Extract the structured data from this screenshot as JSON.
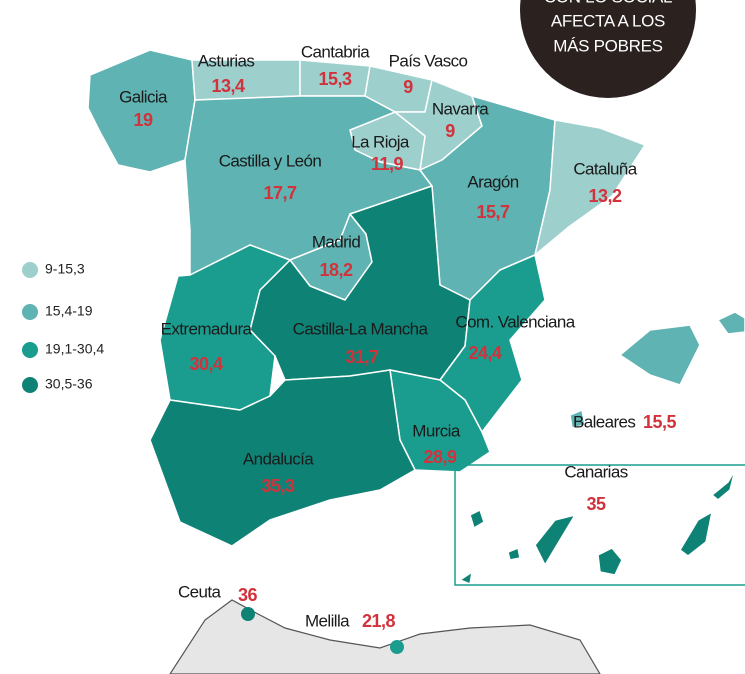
{
  "badge": {
    "lines": [
      "CON LO SOCIAL",
      "AFECTA A LOS",
      "MÁS POBRES"
    ]
  },
  "legend": [
    {
      "label": "9-15,3",
      "color": "#9dcfcc"
    },
    {
      "label": "15,4-19",
      "color": "#5fb3b2"
    },
    {
      "label": "19,1-30,4",
      "color": "#1a9d8f"
    },
    {
      "label": "30,5-36",
      "color": "#0f8276"
    }
  ],
  "regions": [
    {
      "name": "Galicia",
      "value": "19",
      "color": "#5fb3b2"
    },
    {
      "name": "Asturias",
      "value": "13,4",
      "color": "#9dcfcc"
    },
    {
      "name": "Cantabria",
      "value": "15,3",
      "color": "#9dcfcc"
    },
    {
      "name": "País Vasco",
      "value": "9",
      "color": "#9dcfcc"
    },
    {
      "name": "Navarra",
      "value": "9",
      "color": "#9dcfcc"
    },
    {
      "name": "La Rioja",
      "value": "11,9",
      "color": "#9dcfcc"
    },
    {
      "name": "Castilla y León",
      "value": "17,7",
      "color": "#5fb3b2"
    },
    {
      "name": "Aragón",
      "value": "15,7",
      "color": "#5fb3b2"
    },
    {
      "name": "Cataluña",
      "value": "13,2",
      "color": "#9dcfcc"
    },
    {
      "name": "Madrid",
      "value": "18,2",
      "color": "#5fb3b2"
    },
    {
      "name": "Castilla-La Mancha",
      "value": "31,7",
      "color": "#0f8276"
    },
    {
      "name": "Extremadura",
      "value": "30,4",
      "color": "#1a9d8f"
    },
    {
      "name": "Com. Valenciana",
      "value": "24,4",
      "color": "#1a9d8f"
    },
    {
      "name": "Murcia",
      "value": "28,9",
      "color": "#1a9d8f"
    },
    {
      "name": "Andalucía",
      "value": "35,3",
      "color": "#0f8276"
    },
    {
      "name": "Baleares",
      "value": "15,5",
      "color": "#5fb3b2"
    },
    {
      "name": "Canarias",
      "value": "35",
      "color": "#0f8276"
    },
    {
      "name": "Ceuta",
      "value": "36",
      "color": "#0f8276"
    },
    {
      "name": "Melilla",
      "value": "21,8",
      "color": "#1a9d8f"
    }
  ]
}
